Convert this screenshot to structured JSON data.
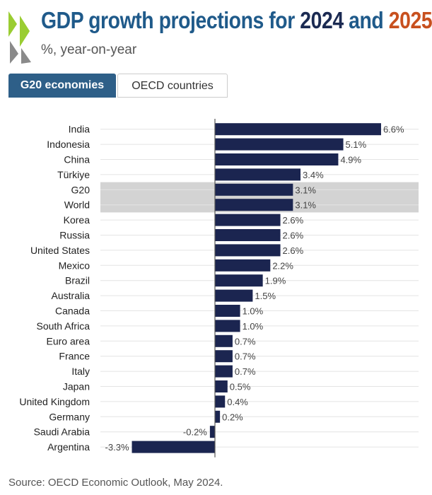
{
  "header": {
    "title_prefix": "GDP growth projections for ",
    "title_year_1": "2024",
    "title_conjunction": " and ",
    "title_year_2": "2025",
    "subtitle": "%, year-on-year"
  },
  "tabs": [
    {
      "label": "G20 economies",
      "active": true
    },
    {
      "label": "OECD countries",
      "active": false
    }
  ],
  "chart_data": {
    "type": "bar",
    "orientation": "horizontal",
    "categories": [
      "India",
      "Indonesia",
      "China",
      "Türkiye",
      "G20",
      "World",
      "Korea",
      "Russia",
      "United States",
      "Mexico",
      "Brazil",
      "Australia",
      "Canada",
      "South Africa",
      "Euro area",
      "France",
      "Italy",
      "Japan",
      "United Kingdom",
      "Germany",
      "Saudi Arabia",
      "Argentina"
    ],
    "values": [
      6.6,
      5.1,
      4.9,
      3.4,
      3.1,
      3.1,
      2.6,
      2.6,
      2.6,
      2.2,
      1.9,
      1.5,
      1.0,
      1.0,
      0.7,
      0.7,
      0.7,
      0.5,
      0.4,
      0.2,
      -0.2,
      -3.3
    ],
    "value_labels": [
      "6.6%",
      "5.1%",
      "4.9%",
      "3.4%",
      "3.1%",
      "3.1%",
      "2.6%",
      "2.6%",
      "2.6%",
      "2.2%",
      "1.9%",
      "1.5%",
      "1.0%",
      "1.0%",
      "0.7%",
      "0.7%",
      "0.7%",
      "0.5%",
      "0.4%",
      "0.2%",
      "-0.2%",
      "-3.3%"
    ],
    "highlighted": [
      "G20",
      "World"
    ],
    "xlim": [
      -3.3,
      6.6
    ],
    "grid": true,
    "colors": {
      "bar": "#1b2550",
      "highlight_band": "#d3d3d3",
      "zero_line": "#555555",
      "grid": "#e4e4e4"
    }
  },
  "footer": {
    "source": "Source: OECD Economic Outlook, May 2024."
  }
}
